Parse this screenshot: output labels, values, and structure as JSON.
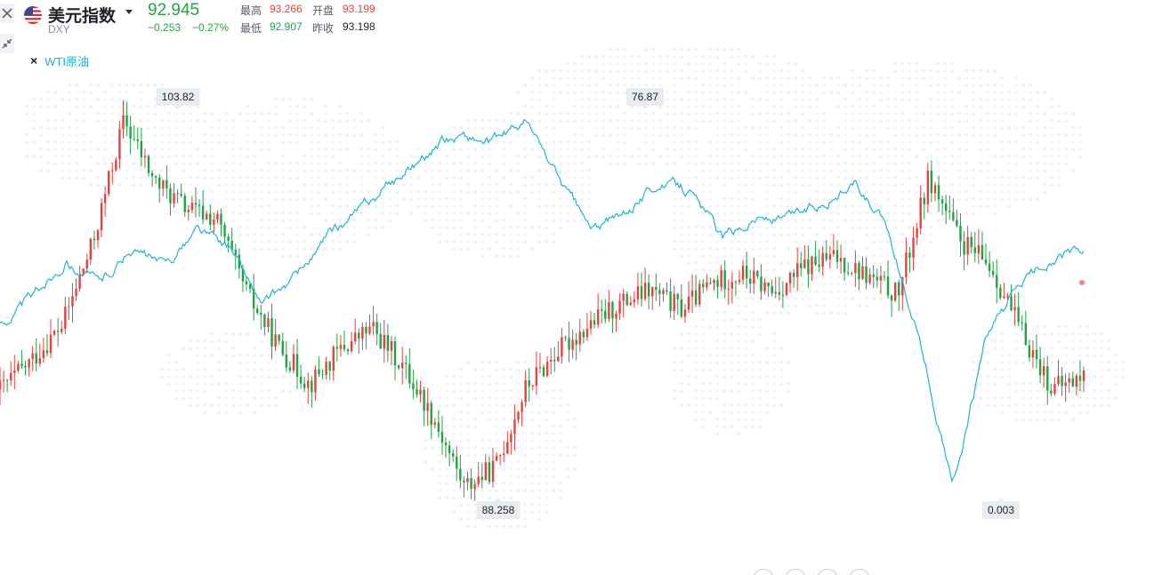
{
  "header": {
    "name": "美元指数",
    "code": "DXY",
    "price": "92.945",
    "change_abs": "−0.253",
    "change_pct": "−0.27%",
    "stats": [
      {
        "label": "最高",
        "value": "93.266",
        "color": "#e8413c"
      },
      {
        "label": "开盘",
        "value": "93.199",
        "color": "#e8413c"
      },
      {
        "label": "最低",
        "value": "92.907",
        "color": "#21a345"
      },
      {
        "label": "昨收",
        "value": "93.198",
        "color": "#1f2329"
      }
    ]
  },
  "toolbar": {
    "close_icon": "close-icon",
    "collapse_icon": "collapse-arrows-icon"
  },
  "legend": {
    "compare_name": "WTI原油",
    "compare_color": "#1fb5c9"
  },
  "colors": {
    "up": "#e8413c",
    "down": "#21a345",
    "compare": "#1fb5c9"
  },
  "chart_data": {
    "type": "line",
    "series": [
      {
        "name": "美元指数",
        "style": "candlestick",
        "values": [
          92.4,
          93.6,
          95.1,
          98.6,
          103.82,
          101.2,
          100.1,
          99.6,
          96.4,
          94.2,
          92.6,
          94.1,
          95.0,
          93.4,
          91.2,
          88.258,
          89.1,
          92.5,
          94.0,
          95.1,
          96.0,
          96.6,
          95.8,
          96.9,
          97.3,
          96.5,
          97.6,
          98.0,
          97.2,
          96.4,
          101.4,
          98.7,
          97.6,
          94.8,
          92.4,
          92.945
        ]
      },
      {
        "name": "WTI原油",
        "values": [
          35,
          40,
          48,
          43,
          50,
          46,
          54,
          50,
          38,
          44,
          52,
          58,
          64,
          70,
          74,
          72,
          76.87,
          65,
          54,
          57,
          64,
          62,
          52,
          57,
          56,
          60,
          64,
          54,
          32,
          0.003,
          30,
          42,
          48,
          49
        ]
      }
    ],
    "callouts": [
      {
        "label": "103.82",
        "series": "美元指数",
        "kind": "high"
      },
      {
        "label": "88.258",
        "series": "美元指数",
        "kind": "low"
      },
      {
        "label": "76.87",
        "series": "WTI原油",
        "kind": "high"
      },
      {
        "label": "0.003",
        "series": "WTI原油",
        "kind": "low"
      }
    ],
    "grid": false
  }
}
